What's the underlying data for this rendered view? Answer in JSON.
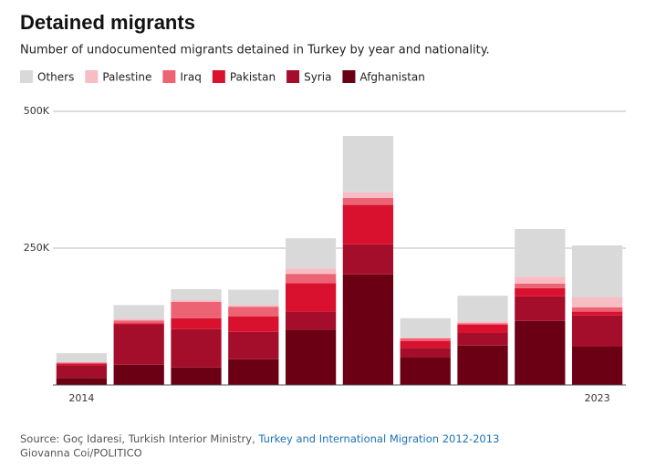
{
  "chart_data": {
    "type": "stacked_bar",
    "title": "Detained migrants",
    "subtitle": "Number of undocumented migrants detained in Turkey by year and nationality.",
    "categories": [
      "2014",
      null,
      null,
      null,
      null,
      null,
      null,
      null,
      null,
      "2023"
    ],
    "series": [
      {
        "name": "Others",
        "color": "#d9d9d9",
        "values": [
          16000,
          25000,
          20000,
          28000,
          55000,
          103000,
          35000,
          47000,
          87000,
          95000
        ]
      },
      {
        "name": "Palestine",
        "color": "#f7bcc4",
        "values": [
          1000,
          3000,
          3000,
          3000,
          10000,
          10000,
          2000,
          3000,
          13000,
          18000
        ]
      },
      {
        "name": "Iraq",
        "color": "#ec6474",
        "values": [
          2000,
          5000,
          30000,
          18000,
          17000,
          13000,
          5000,
          3000,
          8000,
          8000
        ]
      },
      {
        "name": "Pakistan",
        "color": "#d9102e",
        "values": [
          3000,
          3000,
          20000,
          28000,
          52000,
          72000,
          12000,
          15000,
          15000,
          7000
        ]
      },
      {
        "name": "Syria",
        "color": "#a50e2b",
        "values": [
          23000,
          73000,
          70000,
          50000,
          33000,
          55000,
          18000,
          23000,
          45000,
          57000
        ]
      },
      {
        "name": "Afghanistan",
        "color": "#6b0015",
        "values": [
          13000,
          37000,
          32000,
          47000,
          101000,
          202000,
          50000,
          72000,
          117000,
          70000
        ]
      }
    ],
    "ylim": [
      0,
      500000
    ],
    "yticks": [
      {
        "value": 250000,
        "label": "250K"
      },
      {
        "value": 500000,
        "label": "500K"
      }
    ],
    "grid": true,
    "source": "Source: Goç Idaresi, Turkish Interior Ministry, ",
    "source_link": "Turkey and International Migration 2012-2013",
    "credit": "Giovanna Coi/POLITICO"
  }
}
